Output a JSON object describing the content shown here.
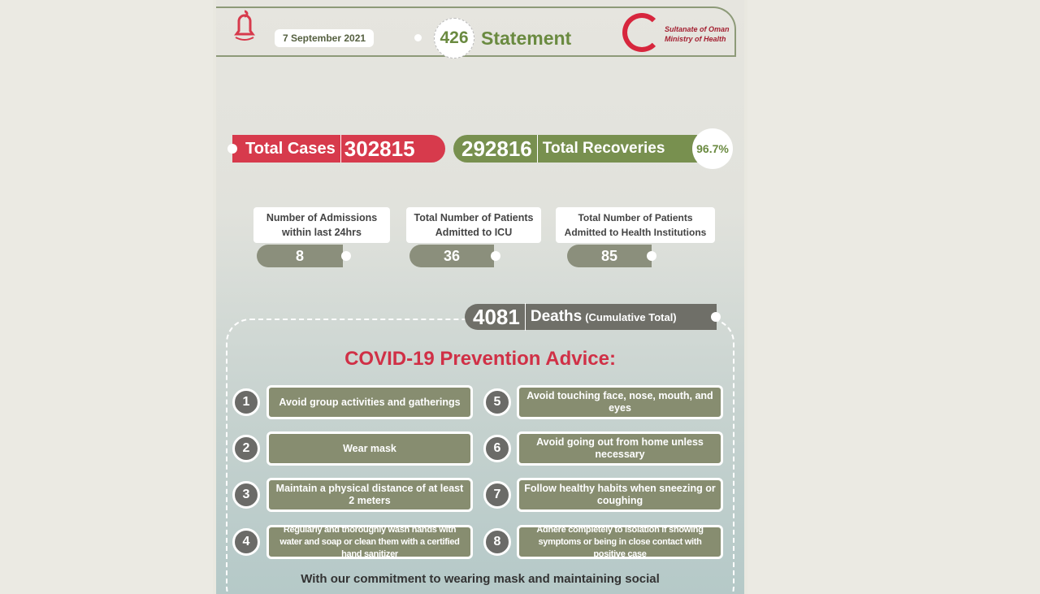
{
  "header": {
    "date": "7 September 2021",
    "statement_number": "426",
    "statement_label": "Statement",
    "logo_text": [
      "Sultanate of Oman",
      "Ministry of Health"
    ],
    "left_logo": "bell-icon"
  },
  "totals": {
    "cases_label": "Total Cases",
    "cases": "302815",
    "recoveries": "292816",
    "recoveries_label": "Total Recoveries",
    "recovery_rate": "96.7%"
  },
  "stats": [
    {
      "label": "Number of Admissions within last 24hrs",
      "value": "8"
    },
    {
      "label": "Total Number of Patients Admitted to ICU",
      "value": "36"
    },
    {
      "label": "Total Number of Patients Admitted to Health Institutions",
      "value": "85"
    }
  ],
  "deaths": {
    "value": "4081",
    "label": "Deaths",
    "note": "(Cumulative Total)"
  },
  "advice": {
    "title": "COVID-19 Prevention Advice:",
    "items": [
      {
        "n": "1",
        "text": "Avoid group activities and gatherings"
      },
      {
        "n": "2",
        "text": "Wear mask"
      },
      {
        "n": "3",
        "text": "Maintain a physical distance of at least 2 meters"
      },
      {
        "n": "4",
        "text": "Regularly and thoroughly wash hands with water and soap or clean them with a certified hand sanitizer"
      },
      {
        "n": "5",
        "text": "Avoid touching face, nose, mouth, and eyes"
      },
      {
        "n": "6",
        "text": "Avoid going out from home unless necessary"
      },
      {
        "n": "7",
        "text": "Follow healthy habits when sneezing or coughing"
      },
      {
        "n": "8",
        "text": "Adhere completely to isolation if showing symptoms or being in close contact with positive case"
      }
    ]
  },
  "footer": "With our commitment to wearing mask and  maintaining social",
  "colors": {
    "red": "#d73a4c",
    "green": "#78904f",
    "olive": "#878d70"
  }
}
